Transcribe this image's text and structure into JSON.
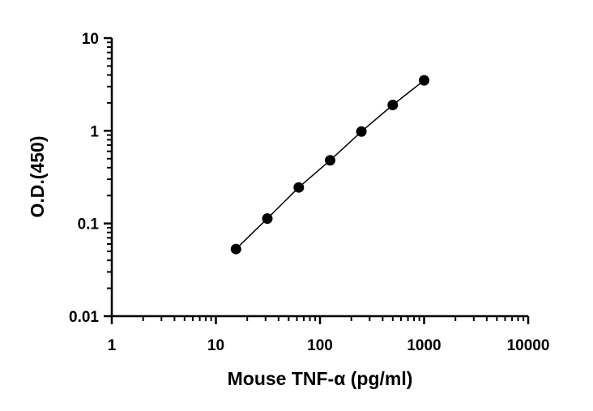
{
  "chart_data": {
    "type": "scatter",
    "xlabel": "Mouse TNF-α (pg/ml)",
    "ylabel": "O.D.(450)",
    "x_scale": "log",
    "y_scale": "log",
    "xlim": [
      1,
      10000
    ],
    "ylim": [
      0.01,
      10
    ],
    "x_ticks": [
      "1",
      "10",
      "100",
      "1000",
      "10000"
    ],
    "y_ticks": [
      "0.01",
      "0.1",
      "1",
      "10"
    ],
    "grid": false,
    "series": [
      {
        "x": [
          15.6,
          31.2,
          62.5,
          125,
          250,
          500,
          1000
        ],
        "y": [
          0.053,
          0.113,
          0.245,
          0.48,
          0.98,
          1.9,
          3.5
        ],
        "connected": true
      }
    ],
    "colors": {
      "axis": "#000000",
      "marker": "#000000",
      "line": "#000000"
    }
  }
}
